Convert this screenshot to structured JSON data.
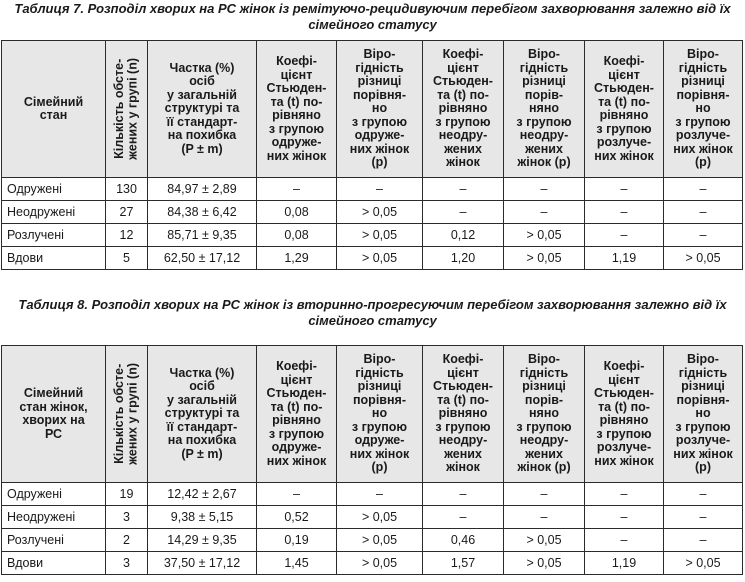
{
  "table7": {
    "caption": "Таблиця 7. Розподіл хворих на РС жінок із ремітуючо-рецидивуючим перебігом захворювання залежно від їх сімейного статусу",
    "headers": {
      "status": "Сімейний\nстан",
      "count": "Кількість обсте-\nжених у групі (n)",
      "share": "Частка (%)\nосіб\nу загальній\nструктурі та\nїї стандарт-\nна похибка\n(P ± m)",
      "t_married": "Коефі-\nцієнт\nСтьюден-\nта (t) по-\nрівняно\nз групою\nодруже-\nних жінок",
      "p_married": "Віро-\nгідність\nрізниці\nпорівня-\nно\nз групою\nодруже-\nних жінок\n(p)",
      "t_unmarried": "Коефі-\nцієнт\nСтьюден-\nта (t) по-\nрівняно\nз групою\nнеодру-\nжених\nжінок",
      "p_unmarried": "Віро-\nгідність\nрізниці\nпорів-\nняно\nз групою\nнеодру-\nжених\nжінок (p)",
      "t_divorced": "Коефі-\nцієнт\nСтьюден-\nта (t) по-\nрівняно\nз групою\nрозлуче-\nних жінок",
      "p_divorced": "Віро-\nгідність\nрізниці\nпорівня-\nно\nз групою\nрозлуче-\nних жінок\n(p)"
    },
    "rows": [
      [
        "Одружені",
        "130",
        "84,97 ± 2,89",
        "–",
        "–",
        "–",
        "–",
        "–",
        "–"
      ],
      [
        "Неодружені",
        "27",
        "84,38 ± 6,42",
        "0,08",
        "> 0,05",
        "–",
        "–",
        "–",
        "–"
      ],
      [
        "Розлучені",
        "12",
        "85,71 ± 9,35",
        "0,08",
        "> 0,05",
        "0,12",
        "> 0,05",
        "–",
        "–"
      ],
      [
        "Вдови",
        "5",
        "62,50 ± 17,12",
        "1,29",
        "> 0,05",
        "1,20",
        "> 0,05",
        "1,19",
        "> 0,05"
      ]
    ]
  },
  "table8": {
    "caption": "Таблиця 8. Розподіл хворих на РС жінок із вторинно-прогресуючим перебігом захворювання залежно від їх сімейного статусу",
    "headers": {
      "status": "Сімейний\nстан жінок,\nхворих на\nРС",
      "count": "Кількість обсте-\nжених у групі (n)",
      "share": "Частка (%)\nосіб\nу загальній\nструктурі та\nїї стандарт-\nна похибка\n(P ± m)",
      "t_married": "Коефі-\nцієнт\nСтьюден-\nта (t) по-\nрівняно\nз групою\nодруже-\nних жінок",
      "p_married": "Віро-\nгідність\nрізниці\nпорівня-\nно\nз групою\nодруже-\nних жінок\n(p)",
      "t_unmarried": "Коефі-\nцієнт\nСтьюден-\nта (t) по-\nрівняно\nз групою\nнеодру-\nжених\nжінок",
      "p_unmarried": "Віро-\nгідність\nрізниці\nпорів-\nняно\nз групою\nнеодру-\nжених\nжінок (p)",
      "t_divorced": "Коефі-\nцієнт\nСтьюден-\nта (t) по-\nрівняно\nз групою\nрозлуче-\nних жінок",
      "p_divorced": "Віро-\nгідність\nрізниці\nпорівня-\nно\nз групою\nрозлуче-\nних жінок\n(p)"
    },
    "rows": [
      [
        "Одружені",
        "19",
        "12,42 ± 2,67",
        "–",
        "–",
        "–",
        "–",
        "–",
        "–"
      ],
      [
        "Неодружені",
        "3",
        "9,38 ± 5,15",
        "0,52",
        "> 0,05",
        "–",
        "–",
        "–",
        "–"
      ],
      [
        "Розлучені",
        "2",
        "14,29 ± 9,35",
        "0,19",
        "> 0,05",
        "0,46",
        "> 0,05",
        "–",
        "–"
      ],
      [
        "Вдови",
        "3",
        "37,50 ± 17,12",
        "1,45",
        "> 0,05",
        "1,57",
        "> 0,05",
        "1,19",
        "> 0,05"
      ]
    ]
  }
}
